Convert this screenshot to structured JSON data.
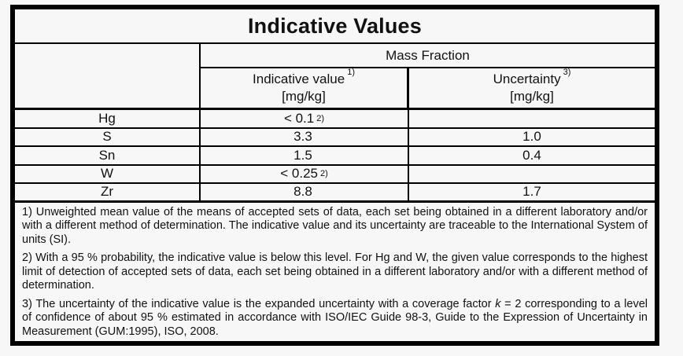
{
  "colors": {
    "background": "#f7f7f8",
    "border": "#000000",
    "text": "#111111"
  },
  "table": {
    "title": "Indicative Values",
    "group_header": "Mass Fraction",
    "columns": {
      "indicative": {
        "label": "Indicative value",
        "sup": "1)",
        "unit": "[mg/kg]"
      },
      "uncertainty": {
        "label": "Uncertainty",
        "sup": "3)",
        "unit": "[mg/kg]"
      }
    },
    "rows": [
      {
        "element": "Hg",
        "indicative": "< 0.1",
        "indicative_sup": "2)",
        "uncertainty": ""
      },
      {
        "element": "S",
        "indicative": "3.3",
        "indicative_sup": "",
        "uncertainty": "1.0"
      },
      {
        "element": "Sn",
        "indicative": "1.5",
        "indicative_sup": "",
        "uncertainty": "0.4"
      },
      {
        "element": "W",
        "indicative": "< 0.25",
        "indicative_sup": "2)",
        "uncertainty": ""
      },
      {
        "element": "Zr",
        "indicative": "8.8",
        "indicative_sup": "",
        "uncertainty": "1.7"
      }
    ]
  },
  "footnotes": {
    "fn1": "1) Unweighted mean value of the means of accepted sets of data, each set being obtained in a different laboratory and/or with a different method of determination. The indicative value and its uncertainty are traceable to the International System of units (SI).",
    "fn2": "2) With a 95 % probability, the indicative value is below this level. For Hg and W, the given value corresponds to the highest limit of detection of accepted sets of data, each set being obtained in a different laboratory and/or with a different method of determination.",
    "fn3_before": "3) The uncertainty of the indicative value is the expanded uncertainty with a coverage factor ",
    "fn3_italic": "k",
    "fn3_after": " = 2 corresponding to a level of confidence of about 95 % estimated in accordance with ISO/IEC Guide 98-3, Guide to the Expression of Uncertainty in Measurement (GUM:1995), ISO, 2008."
  }
}
